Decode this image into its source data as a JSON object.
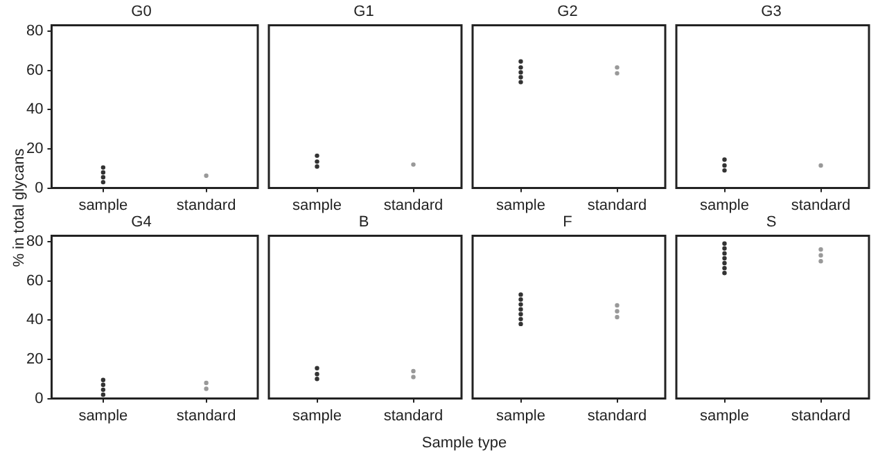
{
  "chart_data": [
    {
      "type": "scatter",
      "title": "G0",
      "ylabel": "% in total glycans",
      "categories": [
        "sample",
        "standard"
      ],
      "ylim": [
        0,
        83
      ],
      "yticks": [
        0,
        20,
        40,
        60,
        80
      ],
      "series": [
        {
          "color": "#333333",
          "x": [
            "sample",
            "sample",
            "sample",
            "sample"
          ],
          "values": [
            3,
            5.5,
            8,
            10.5
          ]
        },
        {
          "color": "#999999",
          "x": [
            "standard"
          ],
          "values": [
            6.3
          ]
        }
      ]
    },
    {
      "type": "scatter",
      "title": "G1",
      "tick_labels": "x",
      "categories": [
        "sample",
        "standard"
      ],
      "ylim": [
        0,
        83
      ],
      "yticks": [
        0,
        20,
        40,
        60,
        80
      ],
      "series": [
        {
          "color": "#333333",
          "x": [
            "sample",
            "sample",
            "sample"
          ],
          "values": [
            11,
            13.5,
            16.5
          ]
        },
        {
          "color": "#999999",
          "x": [
            "standard"
          ],
          "values": [
            12
          ]
        }
      ]
    },
    {
      "type": "scatter",
      "title": "G2",
      "tick_labels": "x",
      "categories": [
        "sample",
        "standard"
      ],
      "ylim": [
        0,
        83
      ],
      "yticks": [
        0,
        20,
        40,
        60,
        80
      ],
      "series": [
        {
          "color": "#333333",
          "x": [
            "sample",
            "sample",
            "sample",
            "sample",
            "sample"
          ],
          "values": [
            54,
            56.5,
            59,
            61.5,
            64.5
          ]
        },
        {
          "color": "#999999",
          "x": [
            "standard",
            "standard"
          ],
          "values": [
            58.5,
            61.5
          ]
        }
      ]
    },
    {
      "type": "scatter",
      "title": "G3",
      "tick_labels": "x",
      "categories": [
        "sample",
        "standard"
      ],
      "ylim": [
        0,
        83
      ],
      "yticks": [
        0,
        20,
        40,
        60,
        80
      ],
      "series": [
        {
          "color": "#333333",
          "x": [
            "sample",
            "sample",
            "sample"
          ],
          "values": [
            9,
            11.5,
            14.5
          ]
        },
        {
          "color": "#999999",
          "x": [
            "standard"
          ],
          "values": [
            11.5
          ]
        }
      ]
    },
    {
      "type": "scatter",
      "title": "G4",
      "categories": [
        "sample",
        "standard"
      ],
      "ylim": [
        0,
        83
      ],
      "yticks": [
        0,
        20,
        40,
        60,
        80
      ],
      "series": [
        {
          "color": "#333333",
          "x": [
            "sample",
            "sample",
            "sample",
            "sample"
          ],
          "values": [
            2,
            4.5,
            7,
            9.5
          ]
        },
        {
          "color": "#999999",
          "x": [
            "standard",
            "standard"
          ],
          "values": [
            5,
            8
          ]
        }
      ]
    },
    {
      "type": "scatter",
      "title": "B",
      "tick_labels": "x",
      "categories": [
        "sample",
        "standard"
      ],
      "ylim": [
        0,
        83
      ],
      "yticks": [
        0,
        20,
        40,
        60,
        80
      ],
      "series": [
        {
          "color": "#333333",
          "x": [
            "sample",
            "sample",
            "sample"
          ],
          "values": [
            10,
            12.5,
            15.5
          ]
        },
        {
          "color": "#999999",
          "x": [
            "standard",
            "standard"
          ],
          "values": [
            11,
            14
          ]
        }
      ]
    },
    {
      "type": "scatter",
      "title": "F",
      "xlabel": "Sample type",
      "tick_labels": "x",
      "categories": [
        "sample",
        "standard"
      ],
      "ylim": [
        0,
        83
      ],
      "yticks": [
        0,
        20,
        40,
        60,
        80
      ],
      "series": [
        {
          "color": "#333333",
          "x": [
            "sample",
            "sample",
            "sample",
            "sample",
            "sample",
            "sample",
            "sample"
          ],
          "values": [
            38,
            40.5,
            43,
            45.5,
            48,
            50.5,
            53
          ]
        },
        {
          "color": "#999999",
          "x": [
            "standard",
            "standard",
            "standard"
          ],
          "values": [
            41.5,
            44.5,
            47.5
          ]
        }
      ]
    },
    {
      "type": "scatter",
      "title": "S",
      "tick_labels": "x",
      "categories": [
        "sample",
        "standard"
      ],
      "ylim": [
        0,
        83
      ],
      "yticks": [
        0,
        20,
        40,
        60,
        80
      ],
      "series": [
        {
          "color": "#333333",
          "x": [
            "sample",
            "sample",
            "sample",
            "sample",
            "sample",
            "sample",
            "sample"
          ],
          "values": [
            64,
            66.5,
            69,
            71.5,
            74,
            76.5,
            79
          ]
        },
        {
          "color": "#999999",
          "x": [
            "standard",
            "standard",
            "standard"
          ],
          "values": [
            70,
            73,
            76
          ]
        }
      ]
    }
  ]
}
